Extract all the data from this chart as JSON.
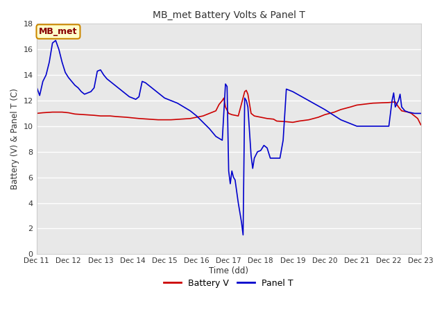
{
  "title": "MB_met Battery Volts & Panel T",
  "xlabel": "Time (dd)",
  "ylabel": "Battery (V) & Panel T (C)",
  "ylim": [
    0,
    18
  ],
  "yticks": [
    0,
    2,
    4,
    6,
    8,
    10,
    12,
    14,
    16,
    18
  ],
  "xlim": [
    0,
    12
  ],
  "xtick_labels": [
    "Dec 11",
    "Dec 12",
    "Dec 13",
    "Dec 14",
    "Dec 15",
    "Dec 16",
    "Dec 17",
    "Dec 18",
    "Dec 19",
    "Dec 20",
    "Dec 21",
    "Dec 22",
    "Dec 23"
  ],
  "legend_label1": "Battery V",
  "legend_label2": "Panel T",
  "color_battery": "#cc0000",
  "color_panel": "#0000cc",
  "bg_color": "#e8e8e8",
  "fig_bg_color": "#ffffff",
  "annotation_text": "MB_met",
  "annotation_bg": "#ffffcc",
  "annotation_border": "#cc8800",
  "annotation_text_color": "#880000",
  "grid_color": "#ffffff",
  "battery_v": [
    [
      0.0,
      11.0
    ],
    [
      0.2,
      11.05
    ],
    [
      0.5,
      11.1
    ],
    [
      0.8,
      11.1
    ],
    [
      1.0,
      11.05
    ],
    [
      1.2,
      10.95
    ],
    [
      1.5,
      10.9
    ],
    [
      1.8,
      10.85
    ],
    [
      2.0,
      10.8
    ],
    [
      2.3,
      10.8
    ],
    [
      2.5,
      10.75
    ],
    [
      2.8,
      10.7
    ],
    [
      3.0,
      10.65
    ],
    [
      3.2,
      10.6
    ],
    [
      3.5,
      10.55
    ],
    [
      3.8,
      10.5
    ],
    [
      4.0,
      10.5
    ],
    [
      4.2,
      10.5
    ],
    [
      4.5,
      10.55
    ],
    [
      4.8,
      10.6
    ],
    [
      5.0,
      10.7
    ],
    [
      5.2,
      10.8
    ],
    [
      5.4,
      11.0
    ],
    [
      5.6,
      11.2
    ],
    [
      5.7,
      11.7
    ],
    [
      5.8,
      12.0
    ],
    [
      5.85,
      12.2
    ],
    [
      5.9,
      11.5
    ],
    [
      6.0,
      11.0
    ],
    [
      6.1,
      10.9
    ],
    [
      6.2,
      10.85
    ],
    [
      6.3,
      10.8
    ],
    [
      6.5,
      12.7
    ],
    [
      6.55,
      12.8
    ],
    [
      6.6,
      12.5
    ],
    [
      6.7,
      11.0
    ],
    [
      6.8,
      10.8
    ],
    [
      7.0,
      10.7
    ],
    [
      7.2,
      10.6
    ],
    [
      7.4,
      10.55
    ],
    [
      7.5,
      10.4
    ],
    [
      7.8,
      10.35
    ],
    [
      8.0,
      10.3
    ],
    [
      8.2,
      10.4
    ],
    [
      8.5,
      10.5
    ],
    [
      8.8,
      10.7
    ],
    [
      9.0,
      10.9
    ],
    [
      9.3,
      11.1
    ],
    [
      9.5,
      11.3
    ],
    [
      9.8,
      11.5
    ],
    [
      10.0,
      11.65
    ],
    [
      10.5,
      11.8
    ],
    [
      11.0,
      11.85
    ],
    [
      11.2,
      11.9
    ],
    [
      11.3,
      11.5
    ],
    [
      11.4,
      11.2
    ],
    [
      11.5,
      11.15
    ],
    [
      11.6,
      11.1
    ],
    [
      11.7,
      11.0
    ],
    [
      11.8,
      10.8
    ],
    [
      11.9,
      10.6
    ],
    [
      12.0,
      10.1
    ]
  ],
  "panel_t": [
    [
      0.0,
      13.1
    ],
    [
      0.1,
      12.4
    ],
    [
      0.2,
      13.5
    ],
    [
      0.3,
      14.0
    ],
    [
      0.4,
      15.0
    ],
    [
      0.5,
      16.5
    ],
    [
      0.6,
      16.7
    ],
    [
      0.7,
      16.0
    ],
    [
      0.8,
      15.0
    ],
    [
      0.9,
      14.2
    ],
    [
      1.0,
      13.8
    ],
    [
      1.1,
      13.5
    ],
    [
      1.2,
      13.2
    ],
    [
      1.3,
      13.0
    ],
    [
      1.4,
      12.7
    ],
    [
      1.5,
      12.5
    ],
    [
      1.6,
      12.6
    ],
    [
      1.7,
      12.7
    ],
    [
      1.8,
      13.0
    ],
    [
      1.9,
      14.3
    ],
    [
      2.0,
      14.4
    ],
    [
      2.1,
      14.0
    ],
    [
      2.2,
      13.7
    ],
    [
      2.3,
      13.5
    ],
    [
      2.4,
      13.3
    ],
    [
      2.5,
      13.1
    ],
    [
      2.6,
      12.9
    ],
    [
      2.7,
      12.7
    ],
    [
      2.8,
      12.5
    ],
    [
      2.9,
      12.3
    ],
    [
      3.0,
      12.2
    ],
    [
      3.1,
      12.1
    ],
    [
      3.2,
      12.3
    ],
    [
      3.3,
      13.5
    ],
    [
      3.4,
      13.4
    ],
    [
      3.5,
      13.2
    ],
    [
      3.6,
      13.0
    ],
    [
      3.7,
      12.8
    ],
    [
      3.8,
      12.6
    ],
    [
      3.9,
      12.4
    ],
    [
      4.0,
      12.2
    ],
    [
      4.2,
      12.0
    ],
    [
      4.4,
      11.8
    ],
    [
      4.6,
      11.5
    ],
    [
      4.8,
      11.2
    ],
    [
      5.0,
      10.8
    ],
    [
      5.2,
      10.3
    ],
    [
      5.4,
      9.8
    ],
    [
      5.6,
      9.2
    ],
    [
      5.8,
      8.9
    ],
    [
      5.9,
      13.3
    ],
    [
      5.95,
      13.1
    ],
    [
      6.0,
      6.5
    ],
    [
      6.05,
      5.5
    ],
    [
      6.1,
      6.5
    ],
    [
      6.15,
      6.0
    ],
    [
      6.2,
      5.8
    ],
    [
      6.3,
      4.0
    ],
    [
      6.4,
      2.5
    ],
    [
      6.45,
      1.5
    ],
    [
      6.5,
      12.2
    ],
    [
      6.55,
      12.0
    ],
    [
      6.6,
      11.5
    ],
    [
      6.7,
      7.7
    ],
    [
      6.75,
      6.7
    ],
    [
      6.8,
      7.5
    ],
    [
      6.9,
      8.0
    ],
    [
      7.0,
      8.1
    ],
    [
      7.1,
      8.5
    ],
    [
      7.2,
      8.3
    ],
    [
      7.3,
      7.5
    ],
    [
      7.4,
      7.5
    ],
    [
      7.5,
      7.5
    ],
    [
      7.6,
      7.5
    ],
    [
      7.7,
      8.9
    ],
    [
      7.8,
      12.9
    ],
    [
      7.9,
      12.8
    ],
    [
      8.0,
      12.7
    ],
    [
      8.5,
      12.0
    ],
    [
      9.0,
      11.3
    ],
    [
      9.5,
      10.5
    ],
    [
      10.0,
      10.0
    ],
    [
      10.5,
      10.0
    ],
    [
      11.0,
      10.0
    ],
    [
      11.1,
      12.0
    ],
    [
      11.15,
      12.6
    ],
    [
      11.2,
      11.5
    ],
    [
      11.3,
      12.0
    ],
    [
      11.35,
      12.5
    ],
    [
      11.4,
      11.5
    ],
    [
      11.5,
      11.2
    ],
    [
      11.6,
      11.1
    ],
    [
      11.7,
      11.05
    ],
    [
      11.8,
      11.0
    ],
    [
      11.9,
      11.0
    ],
    [
      12.0,
      11.0
    ]
  ]
}
